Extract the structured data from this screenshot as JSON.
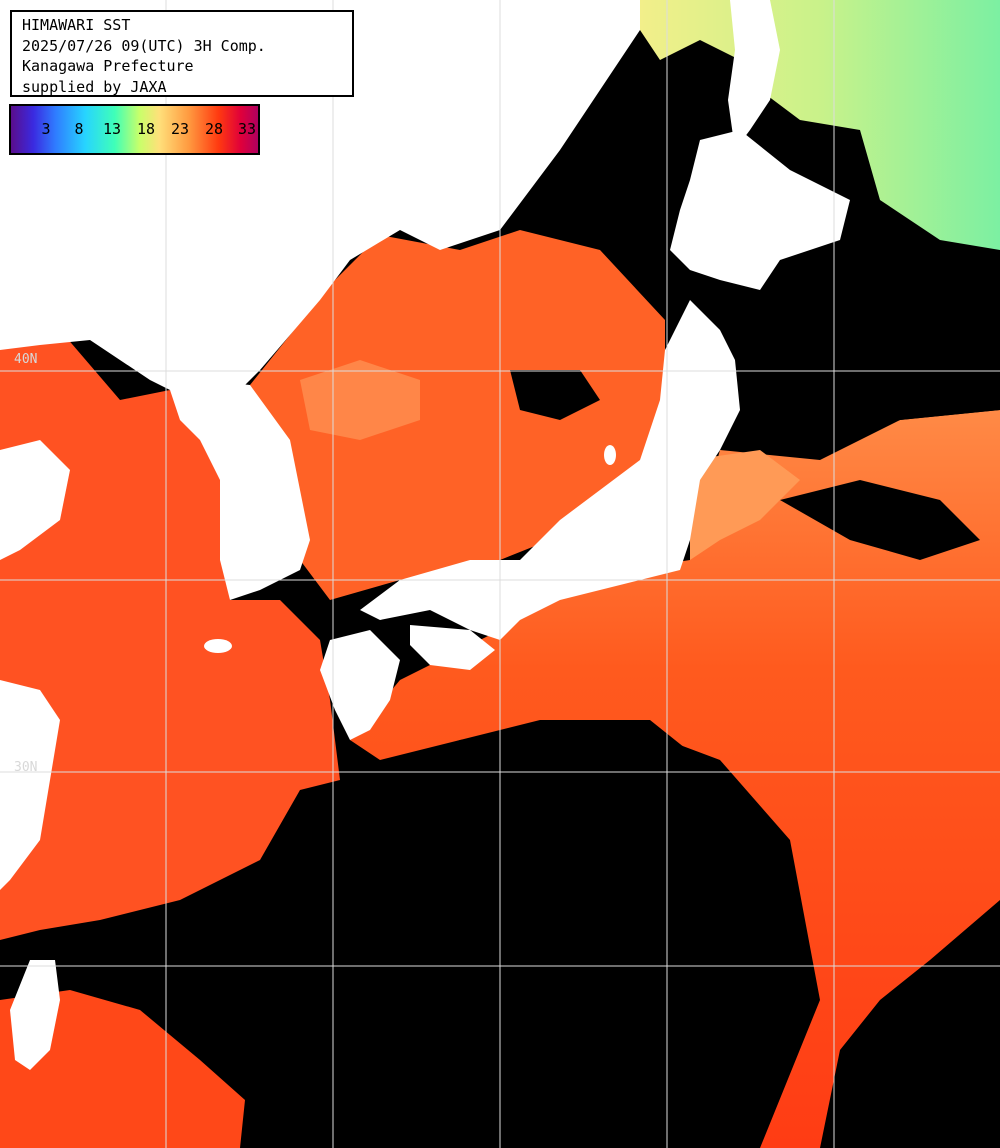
{
  "header": {
    "line1": "HIMAWARI SST",
    "line2": "2025/07/26 09(UTC) 3H Comp.",
    "line3": "Kanagawa Prefecture",
    "line4": "supplied by JAXA"
  },
  "legend": {
    "ticks": [
      "3",
      "8",
      "13",
      "18",
      "23",
      "28",
      "33"
    ]
  },
  "grid_labels": {
    "lat_40": "40N",
    "lat_30": "30N"
  },
  "colors": {
    "ocean_warm": "#ff5a1e",
    "ocean_hot": "#ff3c14",
    "ocean_cool": "#ff9a50",
    "land": "#ffffff",
    "cloud": "#000000",
    "grid": "#dcdcdc"
  }
}
